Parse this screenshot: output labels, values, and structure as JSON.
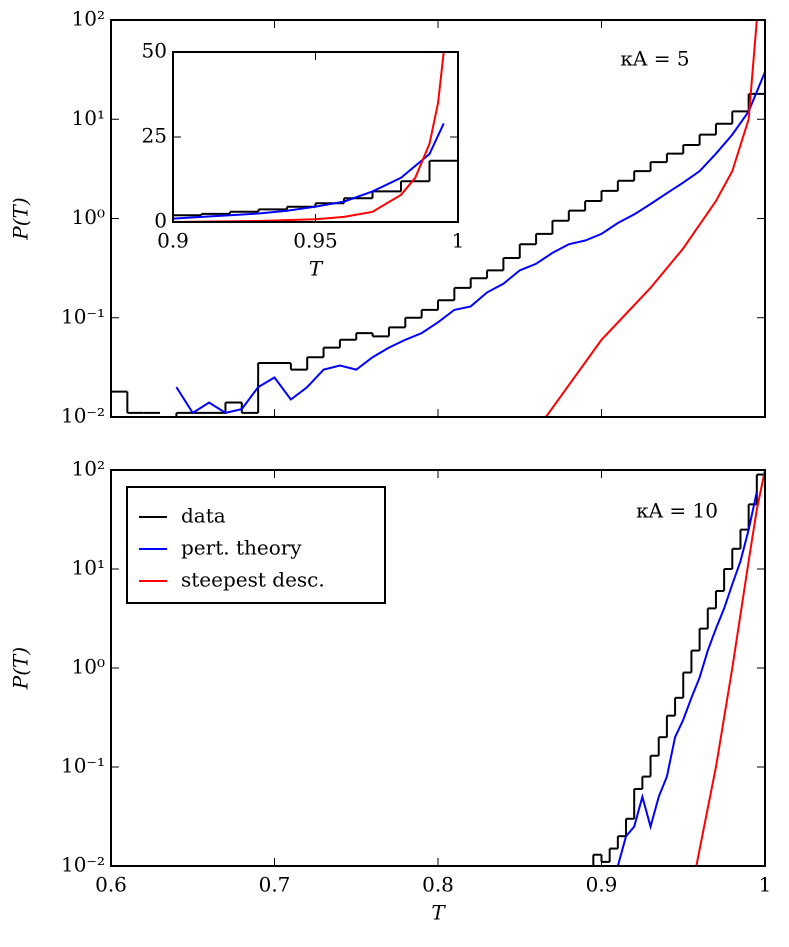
{
  "chart_data": [
    {
      "type": "line",
      "log_y": true,
      "ylabel": "P(T)",
      "annotation": "κA = 5",
      "xlim": [
        0.6,
        1
      ],
      "ylim": [
        0.01,
        100
      ],
      "yticks": [
        {
          "value": 0.01,
          "label": "10⁻²"
        },
        {
          "value": 0.1,
          "label": "10⁻¹"
        },
        {
          "value": 1,
          "label": "10⁰"
        },
        {
          "value": 10,
          "label": "10¹"
        },
        {
          "value": 100,
          "label": "10²"
        }
      ],
      "series": [
        {
          "color": "#000000",
          "bins": [
            0.6,
            0.61,
            0.62,
            0.63,
            0.64,
            0.65,
            0.66,
            0.67,
            0.68,
            0.69,
            0.7,
            0.71,
            0.72,
            0.73,
            0.74,
            0.75,
            0.76,
            0.77,
            0.78,
            0.79,
            0.8,
            0.81,
            0.82,
            0.83,
            0.84,
            0.85,
            0.86,
            0.87,
            0.88,
            0.89,
            0.9,
            0.91,
            0.92,
            0.93,
            0.94,
            0.95,
            0.96,
            0.97,
            0.98,
            0.99,
            1
          ],
          "values": [
            0.018,
            0.011,
            0.011,
            null,
            0.011,
            0.011,
            0.011,
            0.014,
            0.011,
            0.035,
            0.035,
            0.03,
            0.04,
            0.05,
            0.06,
            0.07,
            0.065,
            0.08,
            0.1,
            0.12,
            0.15,
            0.2,
            0.25,
            0.3,
            0.4,
            0.55,
            0.7,
            0.95,
            1.2,
            1.5,
            1.9,
            2.4,
            3,
            3.7,
            4.5,
            5.5,
            7,
            9,
            12,
            18
          ]
        },
        {
          "color": "#0000ff",
          "x": [
            0.64,
            0.65,
            0.66,
            0.67,
            0.68,
            0.69,
            0.7,
            0.71,
            0.72,
            0.73,
            0.74,
            0.75,
            0.76,
            0.77,
            0.78,
            0.79,
            0.8,
            0.81,
            0.82,
            0.83,
            0.84,
            0.85,
            0.86,
            0.87,
            0.88,
            0.89,
            0.9,
            0.91,
            0.92,
            0.93,
            0.94,
            0.95,
            0.96,
            0.97,
            0.98,
            0.99,
            1
          ],
          "values": [
            0.02,
            0.011,
            0.014,
            0.011,
            0.012,
            0.02,
            0.025,
            0.015,
            0.02,
            0.03,
            0.033,
            0.03,
            0.04,
            0.05,
            0.06,
            0.07,
            0.09,
            0.12,
            0.13,
            0.18,
            0.22,
            0.3,
            0.35,
            0.45,
            0.55,
            0.6,
            0.7,
            0.9,
            1.1,
            1.4,
            1.8,
            2.3,
            3,
            4.5,
            7,
            12,
            30
          ]
        },
        {
          "color": "#ff0000",
          "x": [
            0.866,
            0.9,
            0.93,
            0.95,
            0.97,
            0.98,
            0.99,
            0.995
          ],
          "values": [
            0.01,
            0.06,
            0.2,
            0.5,
            1.5,
            3,
            10,
            100
          ]
        }
      ]
    },
    {
      "type": "line",
      "log_y": false,
      "xlabel": "T",
      "xlim": [
        0.9,
        1
      ],
      "ylim": [
        0,
        50
      ],
      "xticks": [
        0.9,
        0.95,
        1
      ],
      "yticks": [
        0,
        25,
        50
      ],
      "series": [
        {
          "color": "#000000",
          "bins": [
            0.9,
            0.91,
            0.92,
            0.93,
            0.94,
            0.95,
            0.96,
            0.97,
            0.98,
            0.99,
            1
          ],
          "values": [
            2,
            2.4,
            3,
            3.7,
            4.5,
            5.5,
            7,
            9,
            12,
            18
          ]
        },
        {
          "color": "#0000ff",
          "x": [
            0.9,
            0.91,
            0.92,
            0.93,
            0.94,
            0.95,
            0.96,
            0.97,
            0.98,
            0.99,
            0.995
          ],
          "values": [
            1,
            1.5,
            2,
            2.5,
            3.3,
            4.5,
            6,
            9,
            13,
            20,
            29
          ]
        },
        {
          "color": "#ff0000",
          "x": [
            0.9,
            0.93,
            0.95,
            0.96,
            0.97,
            0.98,
            0.985,
            0.99,
            0.993,
            0.995
          ],
          "values": [
            0,
            0.3,
            0.8,
            1.5,
            3,
            8,
            13,
            23,
            35,
            50
          ]
        }
      ]
    },
    {
      "type": "line",
      "log_y": true,
      "xlabel": "T",
      "ylabel": "P(T)",
      "annotation": "κA = 10",
      "legend": "upper left",
      "xlim": [
        0.6,
        1
      ],
      "ylim": [
        0.01,
        100
      ],
      "xticks": [
        0.6,
        0.7,
        0.8,
        0.9,
        1
      ],
      "yticks": [
        {
          "value": 0.01,
          "label": "10⁻²"
        },
        {
          "value": 0.1,
          "label": "10⁻¹"
        },
        {
          "value": 1,
          "label": "10⁰"
        },
        {
          "value": 10,
          "label": "10¹"
        },
        {
          "value": 100,
          "label": "10²"
        }
      ],
      "series": [
        {
          "name": "data",
          "color": "#000000",
          "bins": [
            0.895,
            0.9,
            0.905,
            0.91,
            0.915,
            0.92,
            0.925,
            0.93,
            0.935,
            0.94,
            0.945,
            0.95,
            0.955,
            0.96,
            0.965,
            0.97,
            0.975,
            0.98,
            0.985,
            0.99,
            0.995,
            1
          ],
          "values": [
            0.013,
            0.011,
            0.015,
            0.02,
            0.03,
            0.06,
            0.08,
            0.13,
            0.2,
            0.33,
            0.5,
            0.9,
            1.5,
            2.5,
            4,
            6,
            10,
            16,
            25,
            45,
            90
          ]
        },
        {
          "name": "pert. theory",
          "color": "#0000ff",
          "x": [
            0.91,
            0.915,
            0.92,
            0.925,
            0.93,
            0.935,
            0.94,
            0.945,
            0.95,
            0.955,
            0.96,
            0.965,
            0.97,
            0.975,
            0.98,
            0.985,
            0.99,
            0.995
          ],
          "values": [
            0.01,
            0.02,
            0.025,
            0.05,
            0.025,
            0.05,
            0.08,
            0.2,
            0.3,
            0.5,
            0.8,
            1.5,
            2.5,
            4,
            7,
            12,
            25,
            60
          ]
        },
        {
          "name": "steepest desc.",
          "color": "#ff0000",
          "x": [
            0.958,
            0.97,
            0.98,
            0.99,
            0.995,
            1
          ],
          "values": [
            0.01,
            0.1,
            1,
            12,
            40,
            100
          ]
        }
      ]
    }
  ]
}
